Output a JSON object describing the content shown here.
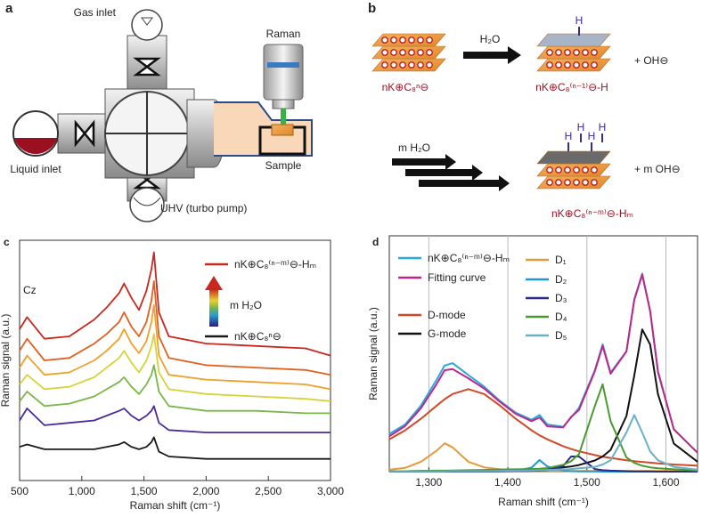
{
  "panels": {
    "a": {
      "label": "a",
      "gas_inlet": "Gas inlet",
      "raman": "Raman",
      "liquid_inlet": "Liquid inlet",
      "sample": "Sample",
      "uhv": "UHV (turbo pump)"
    },
    "b": {
      "label": "b",
      "reactant": "nK⊕C₈ⁿ⊖",
      "reagent": "H₂O",
      "product": "nK⊕C₈⁽ⁿ⁻¹⁾⊖-H",
      "byproduct": "+ OH⊖",
      "reagent2": "m H₂O",
      "product2": "nK⊕C₈⁽ⁿ⁻ᵐ⁾⊖-Hₘ",
      "byproduct2": "+ m OH⊖",
      "h_label": "H"
    }
  },
  "chart_data": [
    {
      "type": "line",
      "panel_label": "c",
      "xlabel": "Raman shift (cm⁻¹)",
      "ylabel": "Raman signal (a.u.)",
      "annotation": "Cz",
      "arrow_label": "m H₂O",
      "x": [
        500,
        560,
        700,
        900,
        1100,
        1200,
        1300,
        1340,
        1400,
        1460,
        1520,
        1560,
        1580,
        1620,
        1700,
        2000,
        2400,
        2800,
        3000
      ],
      "xlim": [
        500,
        3000
      ],
      "ylim": [
        0,
        100
      ],
      "xticks": [
        500,
        {
          "value": 1000,
          "label": "1,000"
        },
        {
          "value": 1500,
          "label": "1,500"
        },
        {
          "value": 2000,
          "label": "2,000"
        },
        {
          "value": 2500,
          "label": "2,500"
        },
        {
          "value": 3000,
          "label": "3,000"
        }
      ],
      "series": [
        {
          "name": "nK⊕C₈⁽ⁿ⁻ᵐ⁾⊖-Hₘ",
          "color": "#c8281e",
          "values": [
            63,
            68,
            59,
            60,
            67,
            72,
            78,
            82,
            76,
            71,
            79,
            88,
            95,
            70,
            60,
            57,
            56,
            55,
            52
          ]
        },
        {
          "color": "#e0601e",
          "values": [
            54,
            59,
            50,
            51,
            57,
            61,
            66,
            70,
            64,
            60,
            66,
            75,
            83,
            60,
            51,
            48,
            47,
            46,
            44
          ]
        },
        {
          "color": "#f0a02a",
          "values": [
            47,
            52,
            44,
            45,
            50,
            54,
            59,
            63,
            57,
            53,
            58,
            66,
            73,
            52,
            44,
            42,
            41,
            40,
            38
          ]
        },
        {
          "color": "#d6d23a",
          "values": [
            40,
            44,
            38,
            39,
            43,
            47,
            51,
            54,
            49,
            45,
            50,
            56,
            61,
            45,
            38,
            36,
            35,
            34,
            33
          ]
        },
        {
          "color": "#7ab648",
          "values": [
            33,
            37,
            31,
            32,
            35,
            38,
            41,
            43,
            39,
            36,
            40,
            44,
            48,
            37,
            31,
            29,
            29,
            28,
            28
          ]
        },
        {
          "color": "#4a2a9c",
          "values": [
            25,
            30,
            23,
            24,
            25,
            27,
            29,
            30,
            27,
            25,
            27,
            29,
            31,
            24,
            21,
            20,
            20,
            20,
            20
          ]
        },
        {
          "name": "nK⊕C₈ⁿ⊖",
          "color": "#1a1a1a",
          "values": [
            14,
            15,
            13,
            13,
            13,
            14,
            15,
            16,
            14,
            13,
            14,
            16,
            18,
            12,
            10,
            9,
            9,
            9,
            9
          ]
        }
      ]
    },
    {
      "type": "line",
      "panel_label": "d",
      "xlabel": "Raman shift (cm⁻¹)",
      "ylabel": "Raman signal (a.u.)",
      "grid": true,
      "x": [
        1250,
        1270,
        1290,
        1310,
        1320,
        1330,
        1350,
        1370,
        1390,
        1410,
        1430,
        1440,
        1450,
        1470,
        1480,
        1490,
        1510,
        1520,
        1530,
        1550,
        1560,
        1570,
        1580,
        1590,
        1610,
        1640
      ],
      "xlim": [
        1250,
        1640
      ],
      "ylim": [
        0,
        100
      ],
      "xticks": [
        {
          "value": 1300,
          "label": "1,300"
        },
        {
          "value": 1400,
          "label": "1,400"
        },
        {
          "value": 1500,
          "label": "1,500"
        },
        {
          "value": 1600,
          "label": "1,600"
        }
      ],
      "series": [
        {
          "name": "nK⊕C₈⁽ⁿ⁻ᵐ⁾⊖-Hₘ",
          "color": "#29a8dc",
          "values": [
            16,
            20,
            28,
            39,
            45,
            46,
            41,
            36,
            30,
            25,
            22,
            24,
            20,
            19,
            23,
            27,
            43,
            54,
            42,
            51,
            73,
            84,
            68,
            42,
            18,
            8
          ]
        },
        {
          "name": "Fitting curve",
          "color": "#c0268a",
          "values": [
            15,
            19.3,
            26.9,
            37.2,
            43,
            43.5,
            39.6,
            35.2,
            29.6,
            24.5,
            21.4,
            23,
            19.2,
            18.8,
            23.2,
            26.2,
            42.6,
            53.3,
            41.5,
            51,
            72.9,
            83.5,
            68.1,
            42.5,
            17.9,
            8
          ]
        },
        {
          "name": "D-mode",
          "color": "#d04a28",
          "values": [
            13.7,
            17.5,
            22.4,
            28,
            30.7,
            32.9,
            35,
            32.9,
            28,
            22.4,
            17.5,
            15.4,
            13.7,
            10.8,
            9.6,
            8.6,
            7,
            6.3,
            5.8,
            4.8,
            4.4,
            4.1,
            3.8,
            3.5,
            3,
            2.5
          ]
        },
        {
          "name": "G-mode",
          "color": "#111111",
          "values": [
            0.2,
            0.2,
            0.3,
            0.3,
            0.3,
            0.3,
            0.4,
            0.5,
            0.6,
            0.7,
            0.9,
            1.1,
            1.2,
            1.8,
            2.2,
            2.8,
            4.7,
            6.4,
            9.2,
            23.6,
            40.8,
            60.3,
            53.9,
            32.8,
            11.9,
            4.2
          ]
        },
        {
          "name": "D₁",
          "color": "#e89a3a",
          "values": [
            0.8,
            1.6,
            4.2,
            8.9,
            12,
            10.3,
            4.2,
            1.8,
            1,
            0.6,
            0.3,
            0.3,
            0.3,
            0.3,
            0.3,
            0.3,
            0.3,
            0.3,
            0.3,
            0.3,
            0.3,
            0.3,
            0.3,
            0.3,
            0.3,
            0.3
          ]
        },
        {
          "name": "D₂",
          "color": "#1a9ad6",
          "values": [
            0,
            0,
            0,
            0,
            0,
            0,
            0,
            0,
            0.1,
            0.3,
            1.7,
            4.9,
            2.2,
            0.4,
            0.2,
            0.1,
            0.1,
            0,
            0,
            0,
            0,
            0,
            0,
            0,
            0,
            0
          ]
        },
        {
          "name": "D₃",
          "color": "#2a2a8a",
          "values": [
            0,
            0,
            0,
            0,
            0,
            0,
            0,
            0,
            0.1,
            0.2,
            0.3,
            0.4,
            0.6,
            2.4,
            6.4,
            6.4,
            1.1,
            0.6,
            0.4,
            0.2,
            0.1,
            0.1,
            0.1,
            0,
            0,
            0
          ]
        },
        {
          "name": "D₄",
          "color": "#4a9a30",
          "values": [
            0.2,
            0.2,
            0.3,
            0.4,
            0.4,
            0.5,
            0.6,
            0.7,
            0.9,
            1,
            1.1,
            1.2,
            1.5,
            2.9,
            4.4,
            7.4,
            27.8,
            37,
            21.4,
            6,
            3.7,
            2.5,
            1.8,
            1.4,
            1,
            0.5
          ]
        },
        {
          "name": "D₅",
          "color": "#6ab0c4",
          "values": [
            0.1,
            0.1,
            0.1,
            0.1,
            0.1,
            0.2,
            0.2,
            0.2,
            0.3,
            0.4,
            0.5,
            0.6,
            0.7,
            0.9,
            1.1,
            1.4,
            2,
            3,
            4.8,
            16.6,
            24,
            16.6,
            8.6,
            4.8,
            2,
            0.8
          ]
        }
      ]
    }
  ]
}
